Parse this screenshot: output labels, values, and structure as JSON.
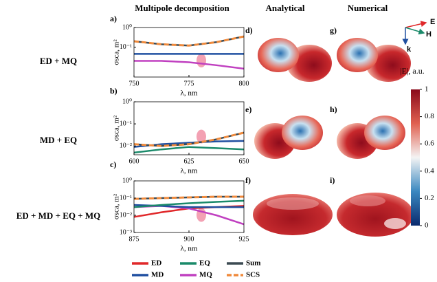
{
  "column_headers": [
    "Multipole decomposition",
    "Analytical",
    "Numerical"
  ],
  "row_labels": [
    "ED + MQ",
    "MD + EQ",
    "ED + MD + EQ + MQ"
  ],
  "panel_letters": [
    "a)",
    "b)",
    "c)",
    "d)",
    "e)",
    "f)",
    "g)",
    "h)",
    "i)"
  ],
  "field_axes": [
    "E",
    "H",
    "k"
  ],
  "legend": [
    {
      "name": "ED",
      "color": "#e0282a",
      "dashed": false
    },
    {
      "name": "EQ",
      "color": "#1a8a6a",
      "dashed": false
    },
    {
      "name": "Sum",
      "color": "#3c4a52",
      "dashed": false
    },
    {
      "name": "MD",
      "color": "#1f4fa0",
      "dashed": false
    },
    {
      "name": "MQ",
      "color": "#c040c0",
      "dashed": false
    },
    {
      "name": "SCS",
      "color": "#f08a3c",
      "dashed": true
    }
  ],
  "colorbar": {
    "label": "|E|, a.u.",
    "ticks": [
      0,
      0.2,
      0.4,
      0.6,
      0.8,
      1
    ],
    "range": [
      0,
      1
    ]
  },
  "chart_data": [
    {
      "type": "line",
      "xlabel": "λ, nm",
      "ylabel": "σsca, m²",
      "yscale": "log",
      "x": [
        750,
        762.5,
        775,
        787.5,
        800
      ],
      "xlim": [
        750,
        800
      ],
      "xticks": [
        750,
        775,
        800
      ],
      "ylim": [
        0.003,
        1
      ],
      "yticks": [
        {
          "value": 1,
          "label": "10⁰"
        },
        {
          "value": 0.1,
          "label": "10⁻¹"
        }
      ],
      "series": [
        {
          "name": "MD",
          "color": "#1f4fa0",
          "values": [
            0.045,
            0.045,
            0.045,
            0.045,
            0.045
          ]
        },
        {
          "name": "MQ",
          "color": "#c040c0",
          "values": [
            0.02,
            0.02,
            0.017,
            0.012,
            0.008
          ]
        },
        {
          "name": "Sum",
          "color": "#3c4a52",
          "values": [
            0.2,
            0.14,
            0.12,
            0.18,
            0.35
          ]
        },
        {
          "name": "SCS",
          "color": "#f08a3c",
          "dashed": true,
          "values": [
            0.2,
            0.14,
            0.12,
            0.18,
            0.35
          ]
        }
      ]
    },
    {
      "type": "line",
      "xlabel": "λ, nm",
      "ylabel": "σsca, m²",
      "yscale": "log",
      "x": [
        600,
        612.5,
        625,
        637.5,
        650
      ],
      "xlim": [
        600,
        650
      ],
      "xticks": [
        600,
        625,
        650
      ],
      "ylim": [
        0.004,
        1
      ],
      "yticks": [
        {
          "value": 1,
          "label": "10⁰"
        },
        {
          "value": 0.1,
          "label": "10⁻¹"
        },
        {
          "value": 0.01,
          "label": "10⁻²"
        }
      ],
      "series": [
        {
          "name": "EQ",
          "color": "#1a8a6a",
          "values": [
            0.005,
            0.007,
            0.009,
            0.008,
            0.007
          ]
        },
        {
          "name": "MD",
          "color": "#1f4fa0",
          "values": [
            0.009,
            0.012,
            0.014,
            0.016,
            0.017
          ]
        },
        {
          "name": "Sum",
          "color": "#3c4a52",
          "values": [
            0.012,
            0.01,
            0.012,
            0.02,
            0.04
          ]
        },
        {
          "name": "SCS",
          "color": "#f08a3c",
          "dashed": true,
          "values": [
            0.012,
            0.01,
            0.012,
            0.02,
            0.04
          ]
        }
      ]
    },
    {
      "type": "line",
      "xlabel": "λ, nm",
      "ylabel": "σsca, m²",
      "yscale": "log",
      "x": [
        875,
        887.5,
        900,
        912.5,
        925
      ],
      "xlim": [
        875,
        925
      ],
      "xticks": [
        875,
        900,
        925
      ],
      "ylim": [
        0.001,
        1
      ],
      "yticks": [
        {
          "value": 1,
          "label": "10⁰"
        },
        {
          "value": 0.1,
          "label": "10⁻¹"
        },
        {
          "value": 0.01,
          "label": "10⁻²"
        },
        {
          "value": 0.001,
          "label": "10⁻³"
        }
      ],
      "series": [
        {
          "name": "ED",
          "color": "#e0282a",
          "values": [
            0.008,
            0.015,
            0.025,
            0.03,
            0.035
          ]
        },
        {
          "name": "MQ",
          "color": "#c040c0",
          "values": [
            0.03,
            0.035,
            0.025,
            0.01,
            0.003
          ]
        },
        {
          "name": "MD",
          "color": "#1f4fa0",
          "values": [
            0.04,
            0.035,
            0.03,
            0.03,
            0.03
          ]
        },
        {
          "name": "EQ",
          "color": "#1a8a6a",
          "values": [
            0.03,
            0.04,
            0.05,
            0.06,
            0.07
          ]
        },
        {
          "name": "Sum",
          "color": "#3c4a52",
          "values": [
            0.09,
            0.1,
            0.11,
            0.12,
            0.12
          ]
        },
        {
          "name": "SCS",
          "color": "#f08a3c",
          "dashed": true,
          "values": [
            0.09,
            0.1,
            0.11,
            0.12,
            0.12
          ]
        }
      ]
    }
  ]
}
